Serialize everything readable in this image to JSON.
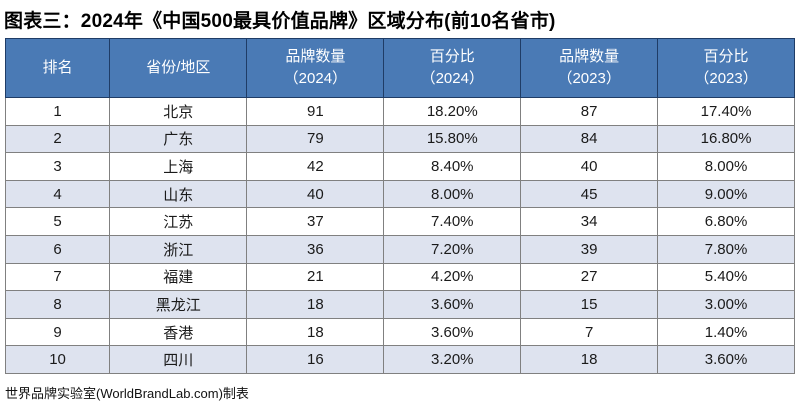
{
  "title": "图表三：2024年《中国500最具价值品牌》区域分布(前10名省市)",
  "footer": "世界品牌实验室(WorldBrandLab.com)制表",
  "colors": {
    "page_bg": "#ffffff",
    "header_bg": "#4a7ab5",
    "header_fg": "#ffffff",
    "header_border": "#1f3c66",
    "grid_line": "#808080",
    "outer_border": "#44546a",
    "row_alt_bg": "#dee3ef",
    "text": "#1a1a1a"
  },
  "table": {
    "headers": [
      {
        "line1": "排名",
        "line2": ""
      },
      {
        "line1": "省份/地区",
        "line2": ""
      },
      {
        "line1": "品牌数量",
        "line2": "（2024）"
      },
      {
        "line1": "百分比",
        "line2": "（2024）"
      },
      {
        "line1": "品牌数量",
        "line2": "（2023）"
      },
      {
        "line1": "百分比",
        "line2": "（2023）"
      }
    ],
    "col_widths_pct": [
      13.2,
      17.4,
      17.35,
      17.35,
      17.35,
      17.35
    ],
    "rows": [
      [
        "1",
        "北京",
        "91",
        "18.20%",
        "87",
        "17.40%"
      ],
      [
        "2",
        "广东",
        "79",
        "15.80%",
        "84",
        "16.80%"
      ],
      [
        "3",
        "上海",
        "42",
        "8.40%",
        "40",
        "8.00%"
      ],
      [
        "4",
        "山东",
        "40",
        "8.00%",
        "45",
        "9.00%"
      ],
      [
        "5",
        "江苏",
        "37",
        "7.40%",
        "34",
        "6.80%"
      ],
      [
        "6",
        "浙江",
        "36",
        "7.20%",
        "39",
        "7.80%"
      ],
      [
        "7",
        "福建",
        "21",
        "4.20%",
        "27",
        "5.40%"
      ],
      [
        "8",
        "黑龙江",
        "18",
        "3.60%",
        "15",
        "3.00%"
      ],
      [
        "9",
        "香港",
        "18",
        "3.60%",
        "7",
        "1.40%"
      ],
      [
        "10",
        "四川",
        "16",
        "3.20%",
        "18",
        "3.60%"
      ]
    ]
  },
  "chart_data": {
    "type": "table",
    "title": "图表三：2024年《中国500最具价值品牌》区域分布(前10名省市)",
    "columns": [
      "排名",
      "省份/地区",
      "品牌数量（2024）",
      "百分比（2024）",
      "品牌数量（2023）",
      "百分比（2023）"
    ],
    "rows": [
      [
        1,
        "北京",
        91,
        "18.20%",
        87,
        "17.40%"
      ],
      [
        2,
        "广东",
        79,
        "15.80%",
        84,
        "16.80%"
      ],
      [
        3,
        "上海",
        42,
        "8.40%",
        40,
        "8.00%"
      ],
      [
        4,
        "山东",
        40,
        "8.00%",
        45,
        "9.00%"
      ],
      [
        5,
        "江苏",
        37,
        "7.40%",
        34,
        "6.80%"
      ],
      [
        6,
        "浙江",
        36,
        "7.20%",
        39,
        "7.80%"
      ],
      [
        7,
        "福建",
        21,
        "4.20%",
        27,
        "5.40%"
      ],
      [
        8,
        "黑龙江",
        18,
        "3.60%",
        15,
        "3.00%"
      ],
      [
        9,
        "香港",
        18,
        "3.60%",
        7,
        "1.40%"
      ],
      [
        10,
        "四川",
        16,
        "3.20%",
        18,
        "3.60%"
      ]
    ],
    "source_note": "世界品牌实验室(WorldBrandLab.com)制表"
  }
}
